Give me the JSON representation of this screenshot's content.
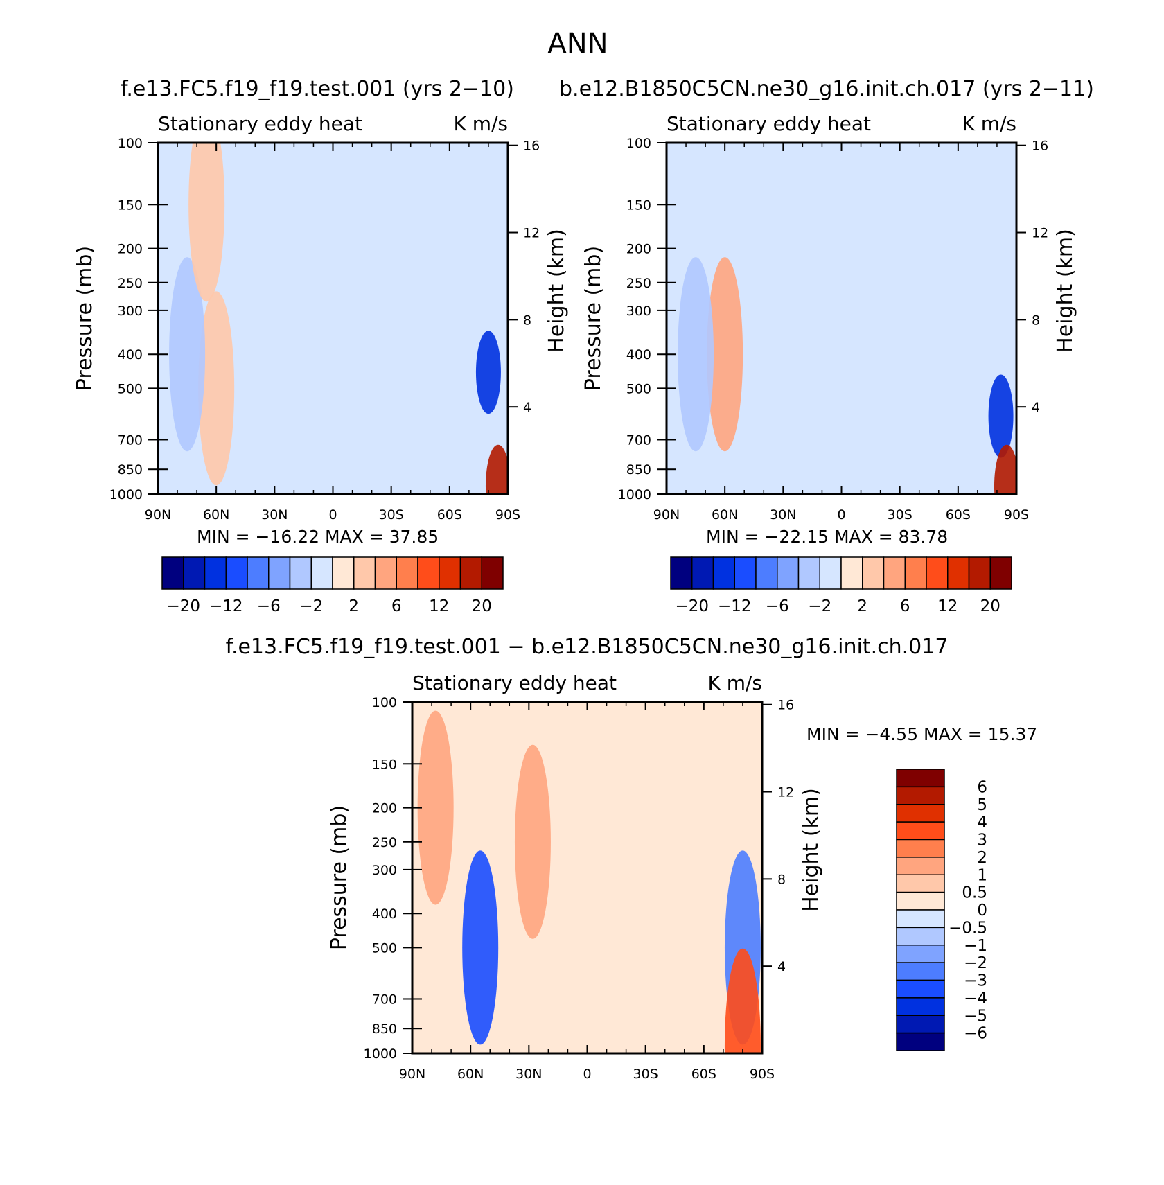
{
  "page_title": "ANN",
  "chart_data": [
    {
      "type": "heatmap",
      "title_left": "f.e13.FC5.f19_f19.test.001 (yrs 2−10)",
      "subtitle_left": "Stationary eddy heat",
      "subtitle_right": "K m/s",
      "ylabel": "Pressure (mb)",
      "ylabel_right": "Height (km)",
      "x_tick_labels": [
        "90N",
        "60N",
        "30N",
        "0",
        "30S",
        "60S",
        "90S"
      ],
      "y_ticks": [
        100,
        150,
        200,
        250,
        300,
        400,
        500,
        700,
        850,
        1000
      ],
      "height_ticks": [
        16,
        12,
        8,
        4
      ],
      "ylim": [
        1000,
        100
      ],
      "y_scale": "log",
      "min_max_text": "MIN = −16.22   MAX =   37.85",
      "min": -16.22,
      "max": 37.85,
      "colorbar": {
        "orientation": "horizontal",
        "labels": [
          "−20",
          "−12",
          "−6",
          "−2",
          "2",
          "6",
          "12",
          "20"
        ],
        "colors": [
          "#00007f",
          "#0019b3",
          "#0031e0",
          "#1a4dff",
          "#4d7dff",
          "#7fa3ff",
          "#b0c8ff",
          "#d6e6ff",
          "#ffe8d6",
          "#ffc8aa",
          "#ffa57f",
          "#ff7f4d",
          "#ff4d1a",
          "#e03000",
          "#b31a00",
          "#7f0000"
        ]
      },
      "features": [
        {
          "x": 60,
          "p": 500,
          "value": 3
        },
        {
          "x": 75,
          "p": 400,
          "value": -2
        },
        {
          "x": 65,
          "p": 150,
          "value": 3
        },
        {
          "x": -80,
          "p": 450,
          "value": -12
        },
        {
          "x": -85,
          "p": 950,
          "value": 20
        }
      ]
    },
    {
      "type": "heatmap",
      "title_right": "b.e12.B1850C5CN.ne30_g16.init.ch.017 (yrs 2−11)",
      "subtitle_left": "Stationary eddy heat",
      "subtitle_right": "K m/s",
      "ylabel": "Pressure (mb)",
      "ylabel_right": "Height (km)",
      "x_tick_labels": [
        "90N",
        "60N",
        "30N",
        "0",
        "30S",
        "60S",
        "90S"
      ],
      "y_ticks": [
        100,
        150,
        200,
        250,
        300,
        400,
        500,
        700,
        850,
        1000
      ],
      "height_ticks": [
        16,
        12,
        8,
        4
      ],
      "ylim": [
        1000,
        100
      ],
      "y_scale": "log",
      "min_max_text": "MIN = −22.15   MAX =   83.78",
      "min": -22.15,
      "max": 83.78,
      "colorbar": {
        "orientation": "horizontal",
        "labels": [
          "−20",
          "−12",
          "−6",
          "−2",
          "2",
          "6",
          "12",
          "20"
        ],
        "colors": [
          "#00007f",
          "#0019b3",
          "#0031e0",
          "#1a4dff",
          "#4d7dff",
          "#7fa3ff",
          "#b0c8ff",
          "#d6e6ff",
          "#ffe8d6",
          "#ffc8aa",
          "#ffa57f",
          "#ff7f4d",
          "#ff4d1a",
          "#e03000",
          "#b31a00",
          "#7f0000"
        ]
      },
      "features": [
        {
          "x": 60,
          "p": 400,
          "value": 6
        },
        {
          "x": 75,
          "p": 400,
          "value": -2
        },
        {
          "x": -82,
          "p": 600,
          "value": -12
        },
        {
          "x": -85,
          "p": 950,
          "value": 20
        }
      ]
    },
    {
      "type": "heatmap",
      "title": "f.e13.FC5.f19_f19.test.001 − b.e12.B1850C5CN.ne30_g16.init.ch.017",
      "subtitle_left": "Stationary eddy heat",
      "subtitle_right": "K m/s",
      "ylabel": "Pressure (mb)",
      "ylabel_right": "Height (km)",
      "x_tick_labels": [
        "90N",
        "60N",
        "30N",
        "0",
        "30S",
        "60S",
        "90S"
      ],
      "y_ticks": [
        100,
        150,
        200,
        250,
        300,
        400,
        500,
        700,
        850,
        1000
      ],
      "height_ticks": [
        16,
        12,
        8,
        4
      ],
      "ylim": [
        1000,
        100
      ],
      "y_scale": "log",
      "min_max_text": "MIN =    −4.55   MAX =   15.37",
      "min": -4.55,
      "max": 15.37,
      "colorbar": {
        "orientation": "vertical",
        "labels": [
          "6",
          "5",
          "4",
          "3",
          "2",
          "1",
          "0.5",
          "0",
          "−0.5",
          "−1",
          "−2",
          "−3",
          "−4",
          "−5",
          "−6"
        ],
        "colors": [
          "#7f0000",
          "#b31a00",
          "#e03000",
          "#ff4d1a",
          "#ff7f4d",
          "#ffa57f",
          "#ffc8aa",
          "#ffe8d6",
          "#d6e6ff",
          "#b0c8ff",
          "#7fa3ff",
          "#4d7dff",
          "#1a4dff",
          "#0031e0",
          "#0019b3",
          "#00007f"
        ]
      },
      "features": [
        {
          "x": 55,
          "p": 500,
          "value": -3
        },
        {
          "x": 78,
          "p": 200,
          "value": 2
        },
        {
          "x": 28,
          "p": 250,
          "value": 2
        },
        {
          "x": -80,
          "p": 500,
          "value": -2
        },
        {
          "x": -80,
          "p": 950,
          "value": 4
        }
      ]
    }
  ]
}
